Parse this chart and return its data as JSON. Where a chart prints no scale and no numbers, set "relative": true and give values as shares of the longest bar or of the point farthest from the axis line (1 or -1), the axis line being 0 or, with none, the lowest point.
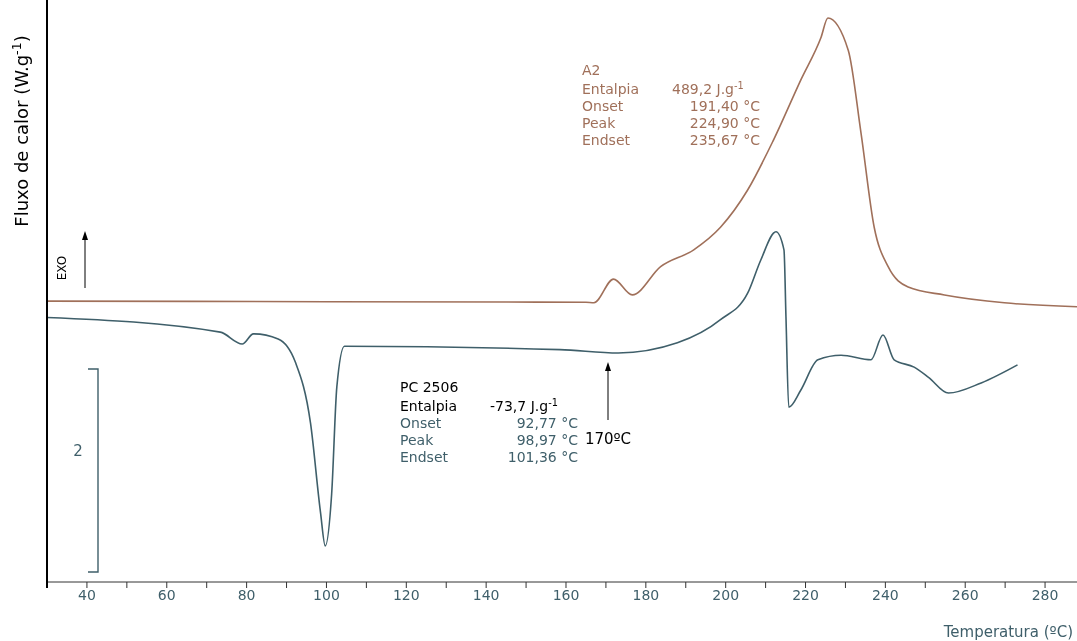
{
  "chart_data": {
    "type": "line",
    "relative": true,
    "xlabel": "Temperatura (ºC)",
    "ylabel": "Fluxo de calor (W.g$^{-1}$)",
    "xlim": [
      30,
      288
    ],
    "xticks": [
      40,
      {
        "value": 50,
        "label": null
      },
      60,
      {
        "value": 70,
        "label": null
      },
      80,
      {
        "value": 90,
        "label": null
      },
      100,
      {
        "value": 110,
        "label": null
      },
      120,
      {
        "value": 130,
        "label": null
      },
      140,
      {
        "value": 150,
        "label": null
      },
      160,
      {
        "value": 170,
        "label": null
      },
      180,
      {
        "value": 190,
        "label": null
      },
      200,
      {
        "value": 210,
        "label": null
      },
      220,
      {
        "value": 230,
        "label": null
      },
      240,
      {
        "value": 250,
        "label": null
      },
      260,
      {
        "value": 270,
        "label": null
      },
      280
    ],
    "marker": "none",
    "line_style": "solid",
    "series": [
      {
        "name": "A2",
        "color": "#a0705a",
        "x": [
          30,
          100,
          165,
          167,
          171.9,
          176.6,
          183.7,
          192,
          198.7,
          205.5,
          212,
          218.8,
          223.9,
          225.6,
          230.7,
          233.9,
          237.2,
          240.7,
          245.7,
          254.8,
          269.8,
          288
        ],
        "values": [
          0.498,
          0.497,
          0.496,
          0.495,
          0.537,
          0.509,
          0.559,
          0.589,
          0.629,
          0.695,
          0.784,
          0.89,
          0.966,
          1,
          0.943,
          0.796,
          0.629,
          0.559,
          0.523,
          0.509,
          0.495,
          0.488
        ]
      },
      {
        "name": "PC 2506",
        "color": "#3f5f6a",
        "x": [
          30,
          73.4,
          78.9,
          81.7,
          87.9,
          92.2,
          96,
          98.5,
          99.7,
          101.3,
          102.6,
          104.5,
          158.5,
          173.1,
          187.9,
          198.7,
          205.5,
          208.8,
          212.6,
          214.6,
          215.1,
          215.8,
          218.8,
          223.1,
          228.9,
          236.4,
          239.4,
          242.2,
          247.2,
          250.8,
          255.8,
          264,
          273.1
        ],
        "values": [
          0.469,
          0.443,
          0.422,
          0.44,
          0.431,
          0.39,
          0.282,
          0.124,
          0.064,
          0.156,
          0.346,
          0.418,
          0.412,
          0.406,
          0.424,
          0.465,
          0.512,
          0.571,
          0.621,
          0.589,
          0.47,
          0.31,
          0.34,
          0.394,
          0.402,
          0.394,
          0.438,
          0.394,
          0.381,
          0.363,
          0.335,
          0.353,
          0.385
        ]
      }
    ],
    "annotations": [
      "Entalpia 489,2 J.g$^{-1}$",
      "Onset 191,40 °C",
      "Peak 224,90 °C",
      "Endset 235,67 °C",
      "Entalpia -73,7 J.g$^{-1}$",
      "Onset 92,77 °C",
      "Peak 98,97 °C",
      "Endset 101,36 °C",
      "170ºC",
      "EXO",
      "2"
    ]
  }
}
